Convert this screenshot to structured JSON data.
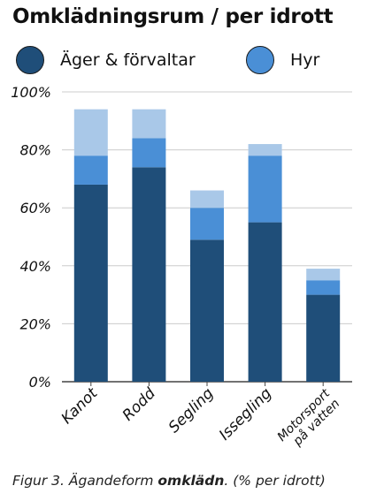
{
  "title": "Omklädningsrum / per idrott",
  "legend": [
    {
      "label": "Äger & förvaltar",
      "color": "#1f4e79"
    },
    {
      "label": "Hyr",
      "color": "#4a8fd6"
    }
  ],
  "caption": {
    "prefix": "Figur 3. Ägandeform ",
    "bold": "omklädn",
    "suffix": ". (% per idrott)"
  },
  "colors": {
    "own": "#1f4e79",
    "rent": "#4a8fd6",
    "other": "#a9c8e8",
    "grid": "#cccccc",
    "axis": "#444444"
  },
  "chart_data": {
    "type": "bar",
    "stacked": true,
    "categories": [
      "Kanot",
      "Rodd",
      "Segling",
      "Issegling",
      "Motorsport\npå vatten"
    ],
    "series": [
      {
        "name": "Äger & förvaltar",
        "values": [
          68,
          74,
          49,
          55,
          30
        ]
      },
      {
        "name": "Hyr",
        "values": [
          10,
          10,
          11,
          23,
          5
        ]
      },
      {
        "name": "",
        "values": [
          16,
          10,
          6,
          4,
          4
        ]
      }
    ],
    "yticks": [
      "0%",
      "20%",
      "40%",
      "60%",
      "80%",
      "100%"
    ],
    "ylim": [
      0,
      100
    ],
    "grid": true,
    "legend_position": "top"
  }
}
